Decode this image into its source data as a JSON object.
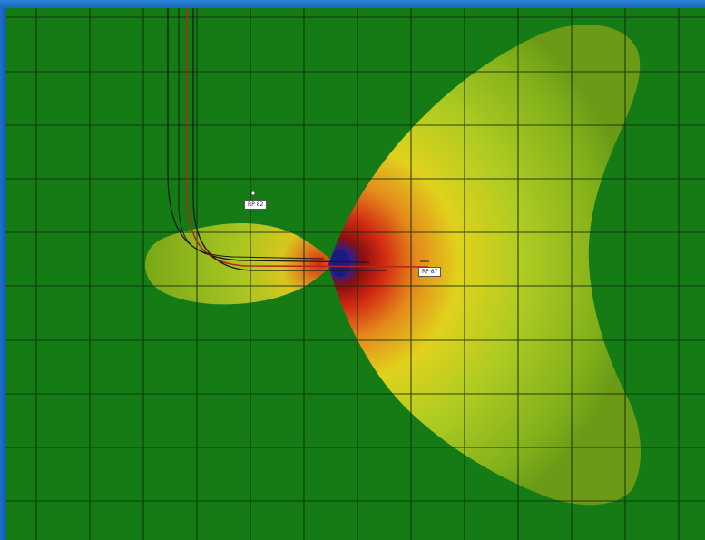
{
  "map": {
    "background_color": "#157c15",
    "grid_color": "#0f2a0f",
    "wells": [
      {
        "id": "well-rp82",
        "label": "RP 82"
      },
      {
        "id": "well-rp87",
        "label": "RP 87"
      }
    ],
    "color_scale": [
      "#1a1a8c",
      "#8c0f0f",
      "#d12a12",
      "#e58a1c",
      "#e0d21c",
      "#aecb22",
      "#78aa18"
    ]
  }
}
